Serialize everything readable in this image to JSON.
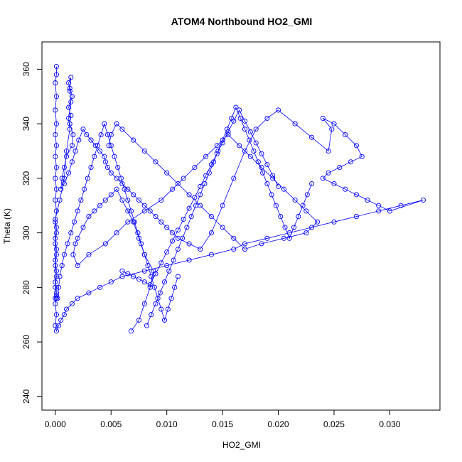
{
  "chart_data": {
    "type": "scatter",
    "title": "ATOM4 Northbound HO2_GMI",
    "xlabel": "HO2_GMI",
    "ylabel": "Theta (K)",
    "xlim": [
      -0.0012,
      0.0345
    ],
    "ylim": [
      235,
      370
    ],
    "x_ticks": [
      "0.000",
      "0.005",
      "0.010",
      "0.015",
      "0.020",
      "0.025",
      "0.030"
    ],
    "y_ticks": [
      "240",
      "260",
      "280",
      "300",
      "320",
      "340",
      "360"
    ],
    "grid": false,
    "legend": "none",
    "marker": "open-circle",
    "connected": true,
    "color": "#0000ff",
    "series": [
      {
        "x": [
          0.0001,
          0.0001,
          0.0,
          0.0001,
          0.0,
          0.0001,
          0.0,
          0.0001,
          0.0,
          0.0001,
          0.0,
          0.0001,
          0.0,
          0.0001,
          0.0,
          0.0001,
          0.0,
          0.0001,
          0.0,
          0.0001,
          0.0,
          0.0001,
          0.0,
          0.0001,
          0.0,
          0.0001,
          0.0,
          0.0001,
          0.0,
          0.0001,
          0.0,
          0.0004,
          0.0008,
          0.001,
          0.0013,
          0.0012,
          0.0014,
          0.0013,
          0.0012,
          0.0014,
          0.0013,
          0.0015,
          0.0012,
          0.0014,
          0.0013,
          0.0016,
          0.0015,
          0.001,
          0.0008,
          0.0006,
          0.0005,
          0.0008,
          0.0012,
          0.0015,
          0.0018,
          0.0021,
          0.0025,
          0.0028,
          0.0032,
          0.0036,
          0.004,
          0.0044,
          0.0045,
          0.0047,
          0.005,
          0.0055,
          0.006,
          0.0065,
          0.007,
          0.0075,
          0.008,
          0.0085,
          0.009,
          0.0095,
          0.01,
          0.0105,
          0.011,
          0.012,
          0.013,
          0.014,
          0.015,
          0.016,
          0.017,
          0.018,
          0.019,
          0.02,
          0.0215,
          0.023,
          0.0245,
          0.0248,
          0.024,
          0.025,
          0.026,
          0.027,
          0.0275,
          0.0265,
          0.0255,
          0.0245,
          0.024,
          0.025,
          0.026,
          0.027,
          0.028,
          0.029,
          0.03,
          0.033,
          0.031,
          0.029,
          0.027,
          0.025,
          0.023,
          0.021,
          0.019,
          0.017,
          0.016,
          0.014,
          0.012,
          0.01,
          0.008,
          0.006,
          0.005,
          0.004,
          0.003,
          0.002,
          0.0015,
          0.001,
          0.0008,
          0.0005,
          0.0003,
          0.0001,
          0.0,
          0.0001,
          0.0,
          0.0001
        ],
        "y": [
          361,
          358,
          355,
          350,
          345,
          340,
          336,
          332,
          328,
          324,
          320,
          316,
          312,
          308,
          304,
          300,
          296,
          292,
          288,
          284,
          280,
          277,
          276,
          278,
          282,
          286,
          290,
          294,
          298,
          302,
          305,
          312,
          320,
          330,
          338,
          342,
          348,
          352,
          355,
          357,
          353,
          350,
          346,
          343,
          340,
          336,
          332,
          328,
          324,
          320,
          316,
          318,
          322,
          326,
          330,
          334,
          338,
          336,
          334,
          332,
          330,
          328,
          326,
          324,
          322,
          320,
          318,
          316,
          314,
          312,
          310,
          308,
          306,
          304,
          302,
          300,
          298,
          296,
          294,
          300,
          310,
          320,
          330,
          338,
          342,
          345,
          340,
          335,
          330,
          338,
          342,
          340,
          336,
          332,
          328,
          326,
          324,
          322,
          320,
          318,
          316,
          314,
          312,
          310,
          308,
          312,
          310,
          308,
          306,
          304,
          302,
          300,
          298,
          296,
          294,
          292,
          290,
          288,
          286,
          284,
          282,
          280,
          278,
          276,
          274,
          272,
          270,
          268,
          266,
          264,
          266,
          270,
          274,
          276
        ]
      },
      {
        "x": [
          0.0068,
          0.0075,
          0.008,
          0.0085,
          0.0088,
          0.008,
          0.0075,
          0.007,
          0.0065,
          0.006,
          0.0055,
          0.005,
          0.0045,
          0.004,
          0.0035,
          0.003,
          0.0025,
          0.002,
          0.0018,
          0.0016,
          0.002,
          0.003,
          0.0045,
          0.0055,
          0.0065,
          0.008,
          0.0095,
          0.0105,
          0.0115,
          0.0125,
          0.0135,
          0.0145,
          0.0155,
          0.0165,
          0.0175,
          0.0185,
          0.0195,
          0.0205,
          0.0215,
          0.0225,
          0.0235,
          0.0225,
          0.0205,
          0.0185,
          0.017,
          0.016,
          0.015,
          0.014,
          0.013,
          0.012,
          0.011,
          0.01,
          0.009,
          0.008,
          0.007,
          0.006,
          0.0055,
          0.005,
          0.0048
        ],
        "y": [
          264,
          268,
          274,
          280,
          286,
          292,
          298,
          304,
          308,
          312,
          316,
          314,
          312,
          310,
          308,
          306,
          302,
          298,
          296,
          292,
          288,
          292,
          296,
          300,
          304,
          308,
          312,
          316,
          320,
          324,
          328,
          332,
          336,
          332,
          328,
          324,
          320,
          316,
          312,
          308,
          304,
          300,
          298,
          296,
          294,
          298,
          302,
          306,
          310,
          314,
          318,
          322,
          326,
          330,
          334,
          338,
          340,
          336,
          332
        ]
      },
      {
        "x": [
          0.0082,
          0.0086,
          0.009,
          0.0094,
          0.0098,
          0.0102,
          0.0106,
          0.011,
          0.0114,
          0.0118,
          0.0122,
          0.0126,
          0.013,
          0.0134,
          0.0138,
          0.0142,
          0.0146,
          0.015,
          0.0154,
          0.0158,
          0.0162,
          0.0166,
          0.017,
          0.0174,
          0.0178,
          0.0182,
          0.0186,
          0.019,
          0.0194,
          0.0198,
          0.0202,
          0.0206,
          0.021,
          0.0214,
          0.0218,
          0.0222,
          0.0226,
          0.023
        ],
        "y": [
          266,
          270,
          274,
          278,
          282,
          286,
          290,
          294,
          298,
          302,
          306,
          310,
          314,
          318,
          322,
          326,
          330,
          334,
          338,
          342,
          346,
          342,
          338,
          334,
          330,
          326,
          322,
          318,
          314,
          310,
          306,
          302,
          298,
          302,
          306,
          310,
          314,
          318
        ]
      },
      {
        "x": [
          0.006,
          0.0065,
          0.007,
          0.0075,
          0.008,
          0.0085,
          0.009,
          0.0095,
          0.01,
          0.0105,
          0.011,
          0.0115,
          0.012,
          0.0125,
          0.013,
          0.0135,
          0.014,
          0.0145,
          0.015,
          0.0155,
          0.016,
          0.0165,
          0.017,
          0.0175,
          0.018,
          0.0185,
          0.019,
          0.0195,
          0.02
        ],
        "y": [
          286,
          285,
          284,
          283,
          282,
          281,
          285,
          289,
          293,
          297,
          301,
          305,
          309,
          313,
          317,
          321,
          325,
          329,
          333,
          337,
          341,
          345,
          341,
          337,
          333,
          329,
          325,
          321,
          317
        ]
      },
      {
        "x": [
          0.0002,
          0.0003,
          0.0004,
          0.0006,
          0.0008,
          0.0011,
          0.0014,
          0.0017,
          0.002,
          0.0023,
          0.0026,
          0.0029,
          0.0032,
          0.0035,
          0.0038,
          0.0041,
          0.0044,
          0.0047,
          0.005,
          0.0053,
          0.0056,
          0.0059,
          0.0062,
          0.0065,
          0.0068,
          0.0071,
          0.0074,
          0.0077,
          0.008,
          0.0083,
          0.0086,
          0.0089,
          0.0092,
          0.0095,
          0.0098,
          0.0101,
          0.0104,
          0.0107,
          0.011
        ],
        "y": [
          276,
          280,
          284,
          288,
          292,
          296,
          300,
          304,
          308,
          312,
          316,
          320,
          324,
          328,
          332,
          336,
          340,
          336,
          332,
          328,
          324,
          320,
          316,
          312,
          308,
          304,
          300,
          296,
          292,
          288,
          284,
          280,
          276,
          272,
          268,
          272,
          276,
          280,
          284
        ]
      }
    ]
  }
}
